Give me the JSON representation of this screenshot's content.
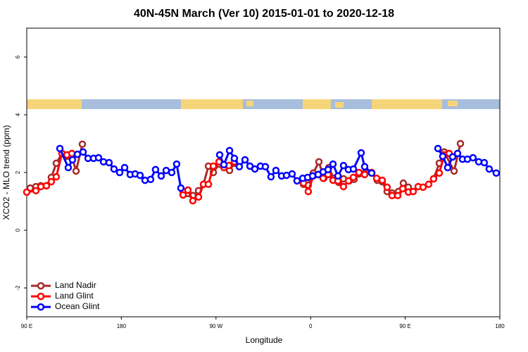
{
  "chart_data": {
    "type": "line",
    "title": "40N-45N March (Ver 10)   2015-01-01 to 2020-12-18",
    "x_label": "Longitude",
    "y_label": "XCO2 - MLO trend (ppm)",
    "xlim": [
      90,
      540
    ],
    "ylim": [
      -3,
      7
    ],
    "xticks": [
      {
        "value": 90,
        "label": "90 E"
      },
      180,
      {
        "value": 270,
        "label": "90 W"
      },
      {
        "value": 360,
        "label": "0"
      },
      {
        "value": 450,
        "label": "90 E"
      },
      {
        "value": 540,
        "label": "180"
      }
    ],
    "yticks": [
      -2,
      0,
      2,
      4,
      6
    ],
    "legend": "bottomleft",
    "series": [
      {
        "name": "Land Nadir",
        "color": "#a52a2a",
        "x": [
          93.3,
          98.7,
          103.4,
          108.7,
          113.4,
          118.1,
          123.5,
          128.2,
          132.9,
          136.9,
          142.9,
          null,
          238.7,
          243.3,
          248,
          253.4,
          258.1,
          262.8,
          267.5,
          272.9,
          277.5,
          282.9,
          287.5,
          null,
          353.2,
          357.8,
          362.5,
          367.9,
          372.6,
          377.3,
          382,
          386.6,
          391.3,
          396.7,
          401.4,
          406,
          411.4,
          418.1,
          423.4,
          428.1,
          432.8,
          437.5,
          443.5,
          448.2,
          453,
          null,
          477,
          482.4,
          487.1,
          496.5,
          502.5
        ],
        "values": [
          1.46,
          1.51,
          1.54,
          1.54,
          1.83,
          2.32,
          2.66,
          2.56,
          2.56,
          2.05,
          2.98,
          null,
          1.34,
          1.27,
          1.2,
          1.37,
          1.59,
          2.22,
          2.0,
          2.29,
          2.27,
          2.07,
          2.32,
          null,
          1.59,
          1.56,
          1.98,
          2.37,
          1.8,
          2.17,
          1.8,
          1.66,
          1.78,
          1.71,
          1.76,
          1.95,
          1.98,
          1.98,
          1.73,
          1.68,
          1.34,
          1.29,
          1.34,
          1.63,
          1.49,
          null,
          1.78,
          2.32,
          2.71,
          2.05,
          3.0
        ]
      },
      {
        "name": "Land Glint",
        "color": "#ff0000",
        "x": [
          90,
          98.7,
          103.4,
          108.7,
          113.4,
          118.1,
          123.5,
          128.2,
          132.9,
          null,
          238.7,
          243.3,
          248,
          253.4,
          258.1,
          262.8,
          267.5,
          272.9,
          277.5,
          282.2,
          287.5,
          null,
          353.2,
          357.8,
          362.5,
          367.2,
          371.9,
          376.6,
          381.3,
          386,
          391.3,
          396,
          400.7,
          406,
          411.4,
          418.1,
          422.8,
          428.1,
          432.8,
          437.5,
          442.9,
          447.6,
          453,
          457.6,
          462.3,
          467,
          472.3,
          477,
          482.4,
          487.1,
          491.8
        ],
        "values": [
          1.32,
          1.37,
          1.51,
          1.54,
          1.68,
          1.85,
          2.66,
          2.61,
          2.66,
          null,
          1.22,
          1.39,
          1.02,
          1.15,
          1.59,
          1.59,
          2.22,
          2.37,
          2.17,
          2.24,
          2.37,
          null,
          1.63,
          1.34,
          1.88,
          1.93,
          1.8,
          1.93,
          1.73,
          1.71,
          1.51,
          1.71,
          1.83,
          2.0,
          1.93,
          2.0,
          1.8,
          1.73,
          1.49,
          1.2,
          1.2,
          1.44,
          1.32,
          1.34,
          1.51,
          1.49,
          1.59,
          1.78,
          1.98,
          2.61,
          2.66
        ]
      },
      {
        "name": "Ocean Glint",
        "color": "#0000ff",
        "x": [
          121.5,
          129.5,
          133.5,
          138.2,
          143.6,
          148.3,
          153.6,
          158.3,
          163,
          168.3,
          173,
          178.4,
          183.1,
          188.4,
          193.1,
          197.8,
          202.5,
          207.8,
          212.5,
          217.9,
          222.6,
          227.9,
          232.6,
          236.6,
          null,
          273.5,
          277.5,
          282.9,
          287.5,
          292.2,
          297.6,
          302.3,
          307,
          312.3,
          317,
          322.3,
          327,
          332.4,
          337.1,
          342.4,
          347.1,
          352.5,
          357.2,
          361.9,
          367.2,
          371.9,
          376.6,
          381.3,
          386,
          391.3,
          396,
          400.7,
          408.1,
          411.4,
          418.1,
          null,
          481.1,
          485.7,
          490.4,
          495.1,
          499.8,
          504.5,
          509.2,
          514.5,
          519.9,
          525.2,
          529.9,
          536.6
        ],
        "values": [
          2.83,
          2.17,
          2.44,
          2.63,
          2.71,
          2.49,
          2.49,
          2.51,
          2.37,
          2.34,
          2.12,
          2.0,
          2.17,
          1.93,
          1.95,
          1.9,
          1.73,
          1.76,
          2.1,
          1.88,
          2.07,
          2.0,
          2.29,
          1.46,
          null,
          2.61,
          2.27,
          2.76,
          2.49,
          2.2,
          2.44,
          2.22,
          2.12,
          2.22,
          2.2,
          1.85,
          2.07,
          1.88,
          1.9,
          1.95,
          1.71,
          1.8,
          1.83,
          1.88,
          1.93,
          2.02,
          2.1,
          2.29,
          1.88,
          2.24,
          2.1,
          2.12,
          2.68,
          2.2,
          1.98,
          null,
          2.83,
          2.56,
          2.17,
          2.54,
          2.66,
          2.46,
          2.46,
          2.51,
          2.37,
          2.34,
          2.12,
          1.98
        ]
      }
    ]
  }
}
